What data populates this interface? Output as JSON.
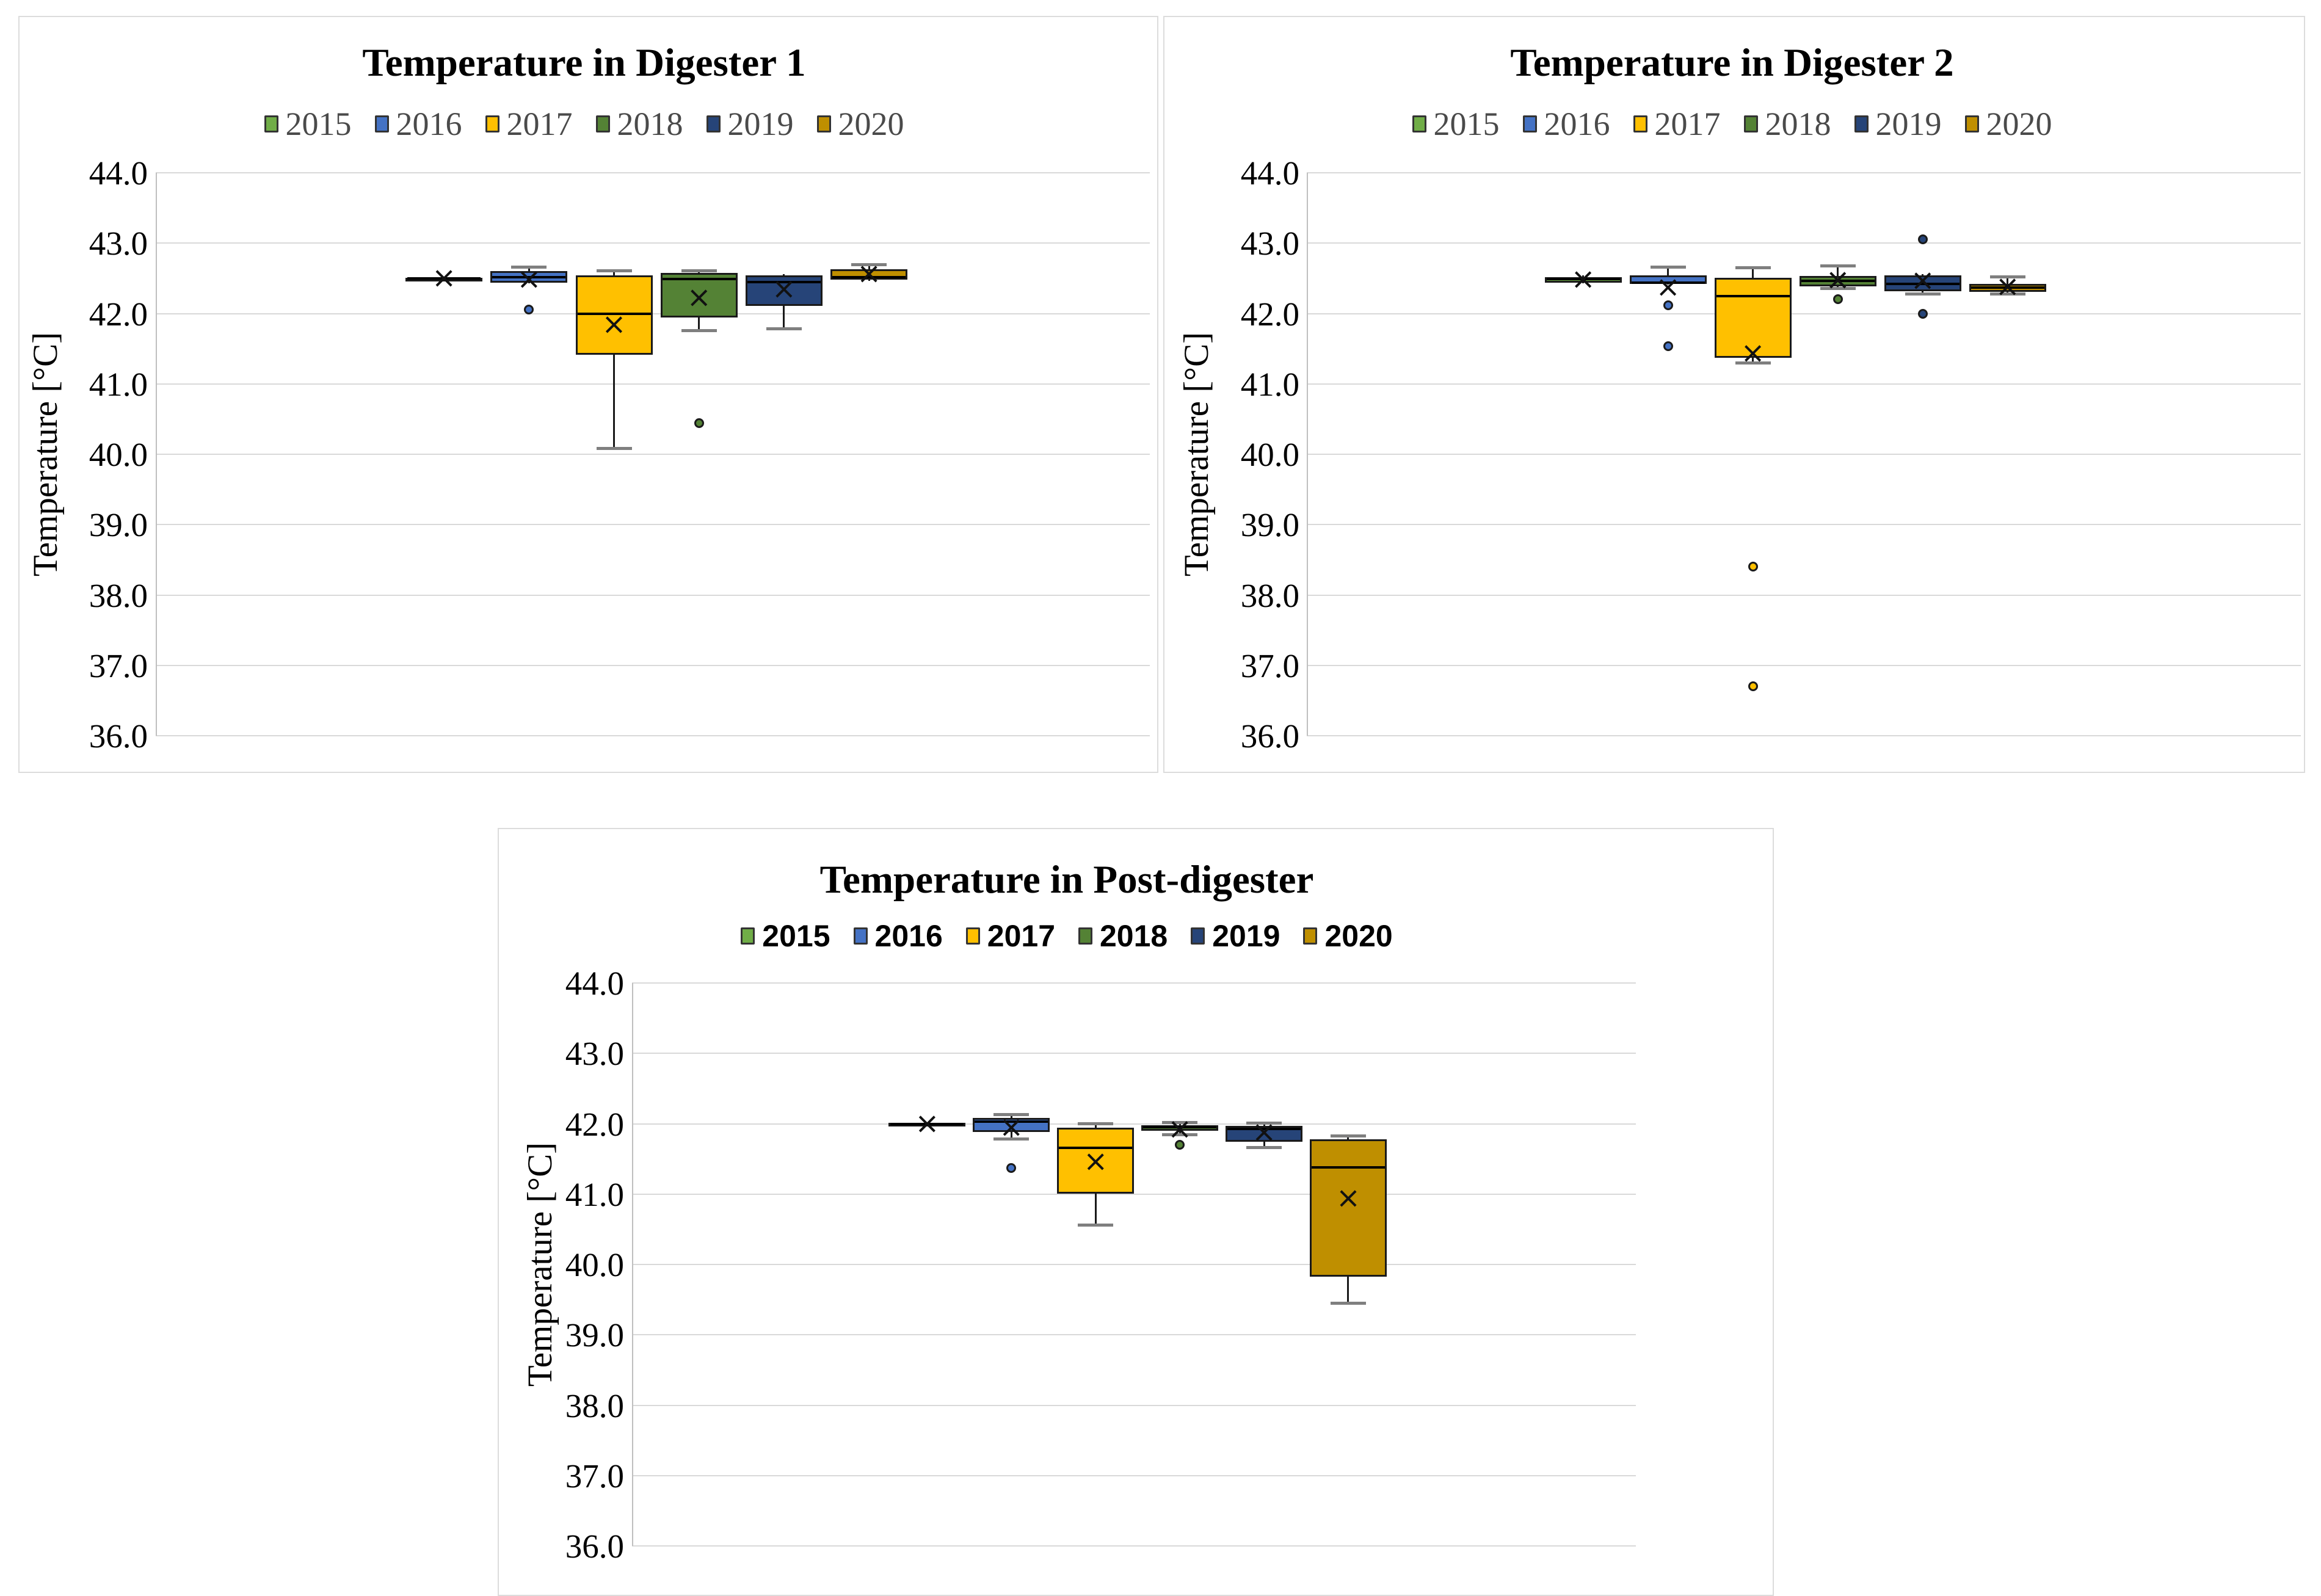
{
  "page": {
    "background": "#FFFFFF"
  },
  "palette": {
    "2015": "#70AD47",
    "2016": "#4472C4",
    "2017": "#FFC000",
    "2018": "#548235",
    "2019": "#264478",
    "2020": "#BF8F00"
  },
  "chart_data": [
    {
      "type": "box",
      "title": "Temperature in Digester 1",
      "ylabel": "Temperature [°C]",
      "ylim": [
        36.0,
        44.0
      ],
      "ytick_step": 1.0,
      "ytick_labels": [
        "44.0",
        "43.0",
        "42.0",
        "41.0",
        "40.0",
        "39.0",
        "38.0",
        "37.0",
        "36.0"
      ],
      "grid": true,
      "legend_position": "top",
      "legend": [
        "2015",
        "2016",
        "2017",
        "2018",
        "2019",
        "2020"
      ],
      "series": [
        {
          "name": "2015",
          "min": 42.49,
          "q1": 42.5,
          "median": 42.5,
          "q3": 42.51,
          "max": 42.52,
          "mean": 42.5,
          "outliers": []
        },
        {
          "name": "2016",
          "min": 42.43,
          "q1": 42.44,
          "median": 42.52,
          "q3": 42.6,
          "max": 42.66,
          "mean": 42.48,
          "outliers": [
            42.06
          ]
        },
        {
          "name": "2017",
          "min": 40.08,
          "q1": 41.41,
          "median": 42.0,
          "q3": 42.54,
          "max": 42.61,
          "mean": 41.84,
          "outliers": []
        },
        {
          "name": "2018",
          "min": 41.76,
          "q1": 41.94,
          "median": 42.49,
          "q3": 42.58,
          "max": 42.61,
          "mean": 42.22,
          "outliers": [
            40.44
          ]
        },
        {
          "name": "2019",
          "min": 41.78,
          "q1": 42.11,
          "median": 42.45,
          "q3": 42.54,
          "max": 42.56,
          "mean": 42.34,
          "outliers": []
        },
        {
          "name": "2020",
          "min": 42.46,
          "q1": 42.48,
          "median": 42.52,
          "q3": 42.63,
          "max": 42.69,
          "mean": 42.56,
          "outliers": []
        }
      ]
    },
    {
      "type": "box",
      "title": "Temperature in Digester 2",
      "ylabel": "Temperature [°C]",
      "ylim": [
        36.0,
        44.0
      ],
      "ytick_step": 1.0,
      "ytick_labels": [
        "44.0",
        "43.0",
        "42.0",
        "41.0",
        "40.0",
        "39.0",
        "38.0",
        "37.0",
        "36.0"
      ],
      "grid": true,
      "legend_position": "top",
      "legend": [
        "2015",
        "2016",
        "2017",
        "2018",
        "2019",
        "2020"
      ],
      "series": [
        {
          "name": "2015",
          "min": 42.43,
          "q1": 42.44,
          "median": 42.49,
          "q3": 42.52,
          "max": 42.54,
          "mean": 42.48,
          "outliers": []
        },
        {
          "name": "2016",
          "min": 42.41,
          "q1": 42.42,
          "median": 42.44,
          "q3": 42.54,
          "max": 42.66,
          "mean": 42.37,
          "outliers": [
            42.12,
            41.54
          ]
        },
        {
          "name": "2017",
          "min": 41.3,
          "q1": 41.37,
          "median": 42.25,
          "q3": 42.51,
          "max": 42.65,
          "mean": 41.43,
          "outliers": [
            38.4,
            36.7
          ]
        },
        {
          "name": "2018",
          "min": 42.36,
          "q1": 42.39,
          "median": 42.46,
          "q3": 42.53,
          "max": 42.68,
          "mean": 42.47,
          "outliers": [
            42.2
          ]
        },
        {
          "name": "2019",
          "min": 42.28,
          "q1": 42.32,
          "median": 42.42,
          "q3": 42.54,
          "max": 42.56,
          "mean": 42.46,
          "outliers": [
            43.05,
            42.0
          ]
        },
        {
          "name": "2020",
          "min": 42.28,
          "q1": 42.31,
          "median": 42.37,
          "q3": 42.42,
          "max": 42.52,
          "mean": 42.38,
          "outliers": []
        }
      ]
    },
    {
      "type": "box",
      "title": "Temperature in Post-digester",
      "ylabel": "Temperature [°C]",
      "ylim": [
        36.0,
        44.0
      ],
      "ytick_step": 1.0,
      "ytick_labels": [
        "44.0",
        "43.0",
        "42.0",
        "41.0",
        "40.0",
        "39.0",
        "38.0",
        "37.0",
        "36.0"
      ],
      "grid": true,
      "legend_position": "top",
      "legend": [
        "2015",
        "2016",
        "2017",
        "2018",
        "2019",
        "2020"
      ],
      "series": [
        {
          "name": "2015",
          "min": 41.98,
          "q1": 41.99,
          "median": 42.0,
          "q3": 42.01,
          "max": 42.02,
          "mean": 42.0,
          "outliers": []
        },
        {
          "name": "2016",
          "min": 41.78,
          "q1": 41.88,
          "median": 42.03,
          "q3": 42.08,
          "max": 42.13,
          "mean": 41.94,
          "outliers": [
            41.37
          ]
        },
        {
          "name": "2017",
          "min": 40.56,
          "q1": 41.01,
          "median": 41.66,
          "q3": 41.94,
          "max": 42.0,
          "mean": 41.46,
          "outliers": []
        },
        {
          "name": "2018",
          "min": 41.84,
          "q1": 41.9,
          "median": 41.95,
          "q3": 41.98,
          "max": 42.02,
          "mean": 41.92,
          "outliers": [
            41.7
          ]
        },
        {
          "name": "2019",
          "min": 41.66,
          "q1": 41.74,
          "median": 41.93,
          "q3": 41.97,
          "max": 42.01,
          "mean": 41.87,
          "outliers": []
        },
        {
          "name": "2020",
          "min": 39.45,
          "q1": 39.83,
          "median": 41.38,
          "q3": 41.78,
          "max": 41.83,
          "mean": 40.94,
          "outliers": []
        }
      ]
    }
  ]
}
